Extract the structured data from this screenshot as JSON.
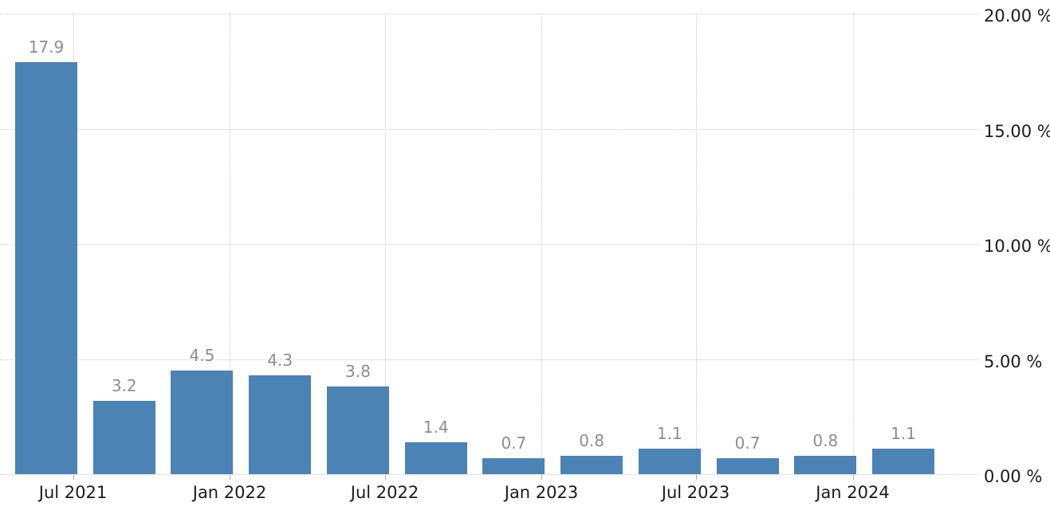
{
  "chart_data": {
    "type": "bar",
    "values": [
      17.9,
      3.2,
      4.5,
      4.3,
      3.8,
      1.4,
      0.7,
      0.8,
      1.1,
      0.7,
      0.8,
      1.1
    ],
    "value_labels": [
      "17.9",
      "3.2",
      "4.5",
      "4.3",
      "3.8",
      "1.4",
      "0.7",
      "0.8",
      "1.1",
      "0.7",
      "0.8",
      "1.1"
    ],
    "x_tick_labels": [
      "Jul 2021",
      "Jan 2022",
      "Jul 2022",
      "Jan 2023",
      "Jul 2023",
      "Jan 2024"
    ],
    "y_ticks": [
      {
        "label": "20.00 %",
        "value": 20
      },
      {
        "label": "15.00 %",
        "value": 15
      },
      {
        "label": "10.00 %",
        "value": 10
      },
      {
        "label": "5.00 %",
        "value": 5
      },
      {
        "label": "0.00 %",
        "value": 0
      }
    ],
    "ylim": [
      0,
      20
    ],
    "title": "",
    "xlabel": "",
    "ylabel": "",
    "legend": "none",
    "grid": "dotted",
    "colors": {
      "bar": "#4A83B4",
      "value_label": "#8E8E8E",
      "axis_label": "#1C1C1C",
      "gridline": "#CCCCCC",
      "tick_mark": "#AAAAAA",
      "background": "#FFFFFF"
    }
  }
}
